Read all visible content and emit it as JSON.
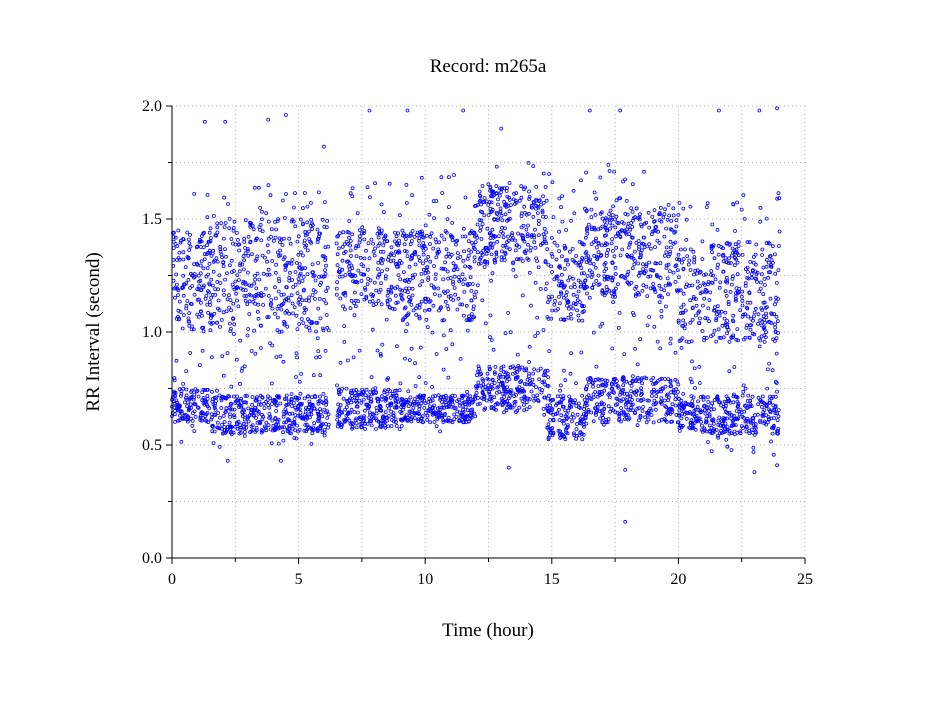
{
  "chart_data": {
    "type": "scatter",
    "title": "Record:  m265a",
    "xlabel": "Time (hour)",
    "ylabel": "RR Interval (second)",
    "xlim": [
      0,
      25
    ],
    "ylim": [
      0,
      2.0
    ],
    "x_ticks": [
      "0",
      "5",
      "10",
      "15",
      "20",
      "25"
    ],
    "y_ticks": [
      "0.0",
      "0.5",
      "1.0",
      "1.5",
      "2.0"
    ],
    "grid": true,
    "grid_style": "dotted",
    "marker": "open-circle",
    "color": "#0000ff",
    "series": [
      {
        "x_range": [
          0,
          24
        ],
        "segments": [
          {
            "x": [
              0.0,
              0.3
            ],
            "lower_band": [
              0.58,
              0.75
            ],
            "upper_band": [
              1.05,
              1.45
            ],
            "spread": [
              0.55,
              1.6
            ]
          },
          {
            "x": [
              0.3,
              1.5
            ],
            "lower_band": [
              0.6,
              0.75
            ],
            "upper_band": [
              1.0,
              1.45
            ],
            "spread": [
              0.5,
              1.65
            ]
          },
          {
            "x": [
              1.5,
              2.5
            ],
            "lower_band": [
              0.55,
              0.72
            ],
            "upper_band": [
              1.0,
              1.5
            ],
            "spread": [
              0.45,
              1.7
            ]
          },
          {
            "x": [
              2.5,
              3.0
            ],
            "lower_band": [
              0.55,
              0.72
            ],
            "upper_band": [
              1.1,
              1.45
            ],
            "spread": [
              0.5,
              1.5
            ]
          },
          {
            "x": [
              3.0,
              6.2
            ],
            "lower_band": [
              0.55,
              0.72
            ],
            "upper_band": [
              1.0,
              1.5
            ],
            "spread": [
              0.5,
              1.65
            ]
          },
          {
            "x": [
              6.5,
              9.0
            ],
            "lower_band": [
              0.57,
              0.75
            ],
            "upper_band": [
              1.1,
              1.45
            ],
            "spread": [
              0.55,
              1.75
            ]
          },
          {
            "x": [
              9.0,
              12.0
            ],
            "lower_band": [
              0.6,
              0.72
            ],
            "upper_band": [
              1.05,
              1.45
            ],
            "spread": [
              0.55,
              1.7
            ]
          },
          {
            "x": [
              12.0,
              14.8
            ],
            "lower_band": [
              0.65,
              0.85
            ],
            "upper_band": [
              1.3,
              1.65
            ],
            "spread": [
              0.6,
              1.75
            ]
          },
          {
            "x": [
              14.8,
              16.3
            ],
            "lower_band": [
              0.52,
              0.72
            ],
            "upper_band": [
              1.05,
              1.4
            ],
            "spread": [
              0.5,
              1.7
            ]
          },
          {
            "x": [
              16.3,
              20.0
            ],
            "lower_band": [
              0.6,
              0.8
            ],
            "upper_band": [
              1.15,
              1.55
            ],
            "spread": [
              0.55,
              1.75
            ]
          },
          {
            "x": [
              20.0,
              24.0
            ],
            "lower_band": [
              0.55,
              0.72
            ],
            "upper_band": [
              0.95,
              1.4
            ],
            "spread": [
              0.45,
              1.65
            ]
          }
        ],
        "outliers": [
          {
            "x": 1.3,
            "y": 1.93
          },
          {
            "x": 2.1,
            "y": 1.93
          },
          {
            "x": 3.8,
            "y": 1.94
          },
          {
            "x": 4.5,
            "y": 1.96
          },
          {
            "x": 6.0,
            "y": 1.82
          },
          {
            "x": 7.8,
            "y": 1.98
          },
          {
            "x": 9.3,
            "y": 1.98
          },
          {
            "x": 11.5,
            "y": 1.98
          },
          {
            "x": 13.0,
            "y": 1.9
          },
          {
            "x": 16.5,
            "y": 1.98
          },
          {
            "x": 17.7,
            "y": 1.98
          },
          {
            "x": 21.6,
            "y": 1.98
          },
          {
            "x": 23.2,
            "y": 1.98
          },
          {
            "x": 23.9,
            "y": 1.99
          },
          {
            "x": 17.9,
            "y": 0.16
          },
          {
            "x": 17.9,
            "y": 0.39
          },
          {
            "x": 13.3,
            "y": 0.4
          },
          {
            "x": 2.2,
            "y": 0.43
          },
          {
            "x": 4.3,
            "y": 0.43
          },
          {
            "x": 23.0,
            "y": 0.38
          },
          {
            "x": 23.9,
            "y": 0.41
          }
        ]
      }
    ]
  }
}
